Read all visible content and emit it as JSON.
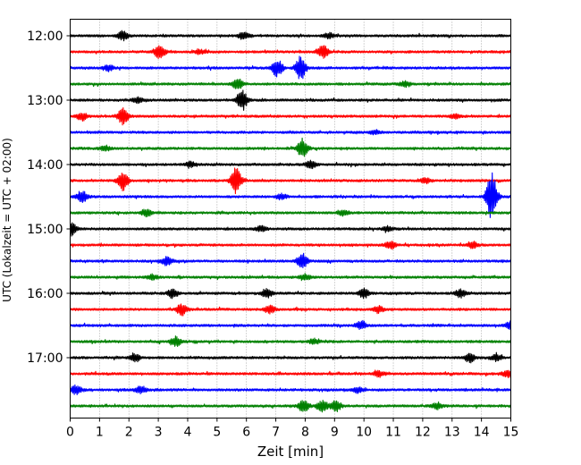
{
  "chart_data": {
    "type": "line",
    "title": "",
    "xlabel": "Zeit  [min]",
    "ylabel": "UTC (Lokalzeit = UTC + 02:00)",
    "xlim": [
      0,
      15
    ],
    "x_ticks": [
      "0",
      "1",
      "2",
      "3",
      "4",
      "5",
      "6",
      "7",
      "8",
      "9",
      "10",
      "11",
      "12",
      "13",
      "14",
      "15"
    ],
    "y_ticks": [
      "12:00",
      "13:00",
      "14:00",
      "15:00",
      "16:00",
      "17:00"
    ],
    "grid": "vertical-dotted",
    "row_colors": [
      "#000000",
      "#ff0000",
      "#0000ff",
      "#008000"
    ],
    "traces": [
      {
        "time": "12:00",
        "events": [
          [
            1.8,
            0.35
          ],
          [
            5.9,
            0.25
          ],
          [
            8.8,
            0.2
          ]
        ]
      },
      {
        "time": "12:15",
        "events": [
          [
            3.05,
            0.55
          ],
          [
            8.6,
            0.5
          ],
          [
            4.4,
            0.2
          ]
        ]
      },
      {
        "time": "12:30",
        "events": [
          [
            7.05,
            0.7
          ],
          [
            7.85,
            0.9
          ],
          [
            1.3,
            0.2
          ]
        ]
      },
      {
        "time": "12:45",
        "events": [
          [
            5.7,
            0.45
          ],
          [
            11.4,
            0.2
          ]
        ]
      },
      {
        "time": "13:00",
        "events": [
          [
            5.85,
            0.8
          ],
          [
            2.3,
            0.2
          ]
        ]
      },
      {
        "time": "13:15",
        "events": [
          [
            1.8,
            0.7
          ],
          [
            0.4,
            0.3
          ],
          [
            13.1,
            0.2
          ]
        ]
      },
      {
        "time": "13:30",
        "events": [
          [
            10.4,
            0.15
          ]
        ]
      },
      {
        "time": "13:45",
        "events": [
          [
            7.9,
            0.75
          ],
          [
            1.2,
            0.2
          ]
        ]
      },
      {
        "time": "14:00",
        "events": [
          [
            8.2,
            0.3
          ],
          [
            4.1,
            0.2
          ]
        ]
      },
      {
        "time": "14:15",
        "events": [
          [
            1.8,
            0.75
          ],
          [
            5.65,
            1.0
          ],
          [
            12.1,
            0.2
          ]
        ]
      },
      {
        "time": "14:30",
        "events": [
          [
            14.35,
            1.9
          ],
          [
            0.4,
            0.45
          ],
          [
            7.2,
            0.2
          ]
        ]
      },
      {
        "time": "14:45",
        "events": [
          [
            2.6,
            0.25
          ],
          [
            9.3,
            0.2
          ]
        ]
      },
      {
        "time": "15:00",
        "events": [
          [
            0.05,
            0.45
          ],
          [
            6.5,
            0.2
          ],
          [
            10.8,
            0.2
          ]
        ]
      },
      {
        "time": "15:15",
        "events": [
          [
            10.9,
            0.3
          ],
          [
            13.7,
            0.25
          ]
        ]
      },
      {
        "time": "15:30",
        "events": [
          [
            7.9,
            0.55
          ],
          [
            3.3,
            0.35
          ]
        ]
      },
      {
        "time": "15:45",
        "events": [
          [
            2.8,
            0.2
          ],
          [
            8.0,
            0.2
          ]
        ]
      },
      {
        "time": "16:00",
        "events": [
          [
            3.5,
            0.35
          ],
          [
            6.7,
            0.35
          ],
          [
            10.0,
            0.35
          ],
          [
            13.3,
            0.3
          ]
        ]
      },
      {
        "time": "16:15",
        "events": [
          [
            3.8,
            0.45
          ],
          [
            6.8,
            0.3
          ],
          [
            10.5,
            0.25
          ]
        ]
      },
      {
        "time": "16:30",
        "events": [
          [
            9.9,
            0.3
          ],
          [
            15.0,
            0.35
          ]
        ]
      },
      {
        "time": "16:45",
        "events": [
          [
            3.6,
            0.35
          ],
          [
            8.3,
            0.2
          ]
        ]
      },
      {
        "time": "17:00",
        "events": [
          [
            2.2,
            0.3
          ],
          [
            13.6,
            0.35
          ],
          [
            14.5,
            0.25
          ]
        ]
      },
      {
        "time": "17:15",
        "events": [
          [
            10.5,
            0.25
          ],
          [
            14.9,
            0.25
          ]
        ]
      },
      {
        "time": "17:30",
        "events": [
          [
            0.2,
            0.35
          ],
          [
            2.4,
            0.3
          ],
          [
            9.8,
            0.2
          ]
        ]
      },
      {
        "time": "17:45",
        "events": [
          [
            7.95,
            0.5
          ],
          [
            8.6,
            0.45
          ],
          [
            9.05,
            0.4
          ],
          [
            12.5,
            0.25
          ]
        ]
      }
    ]
  }
}
